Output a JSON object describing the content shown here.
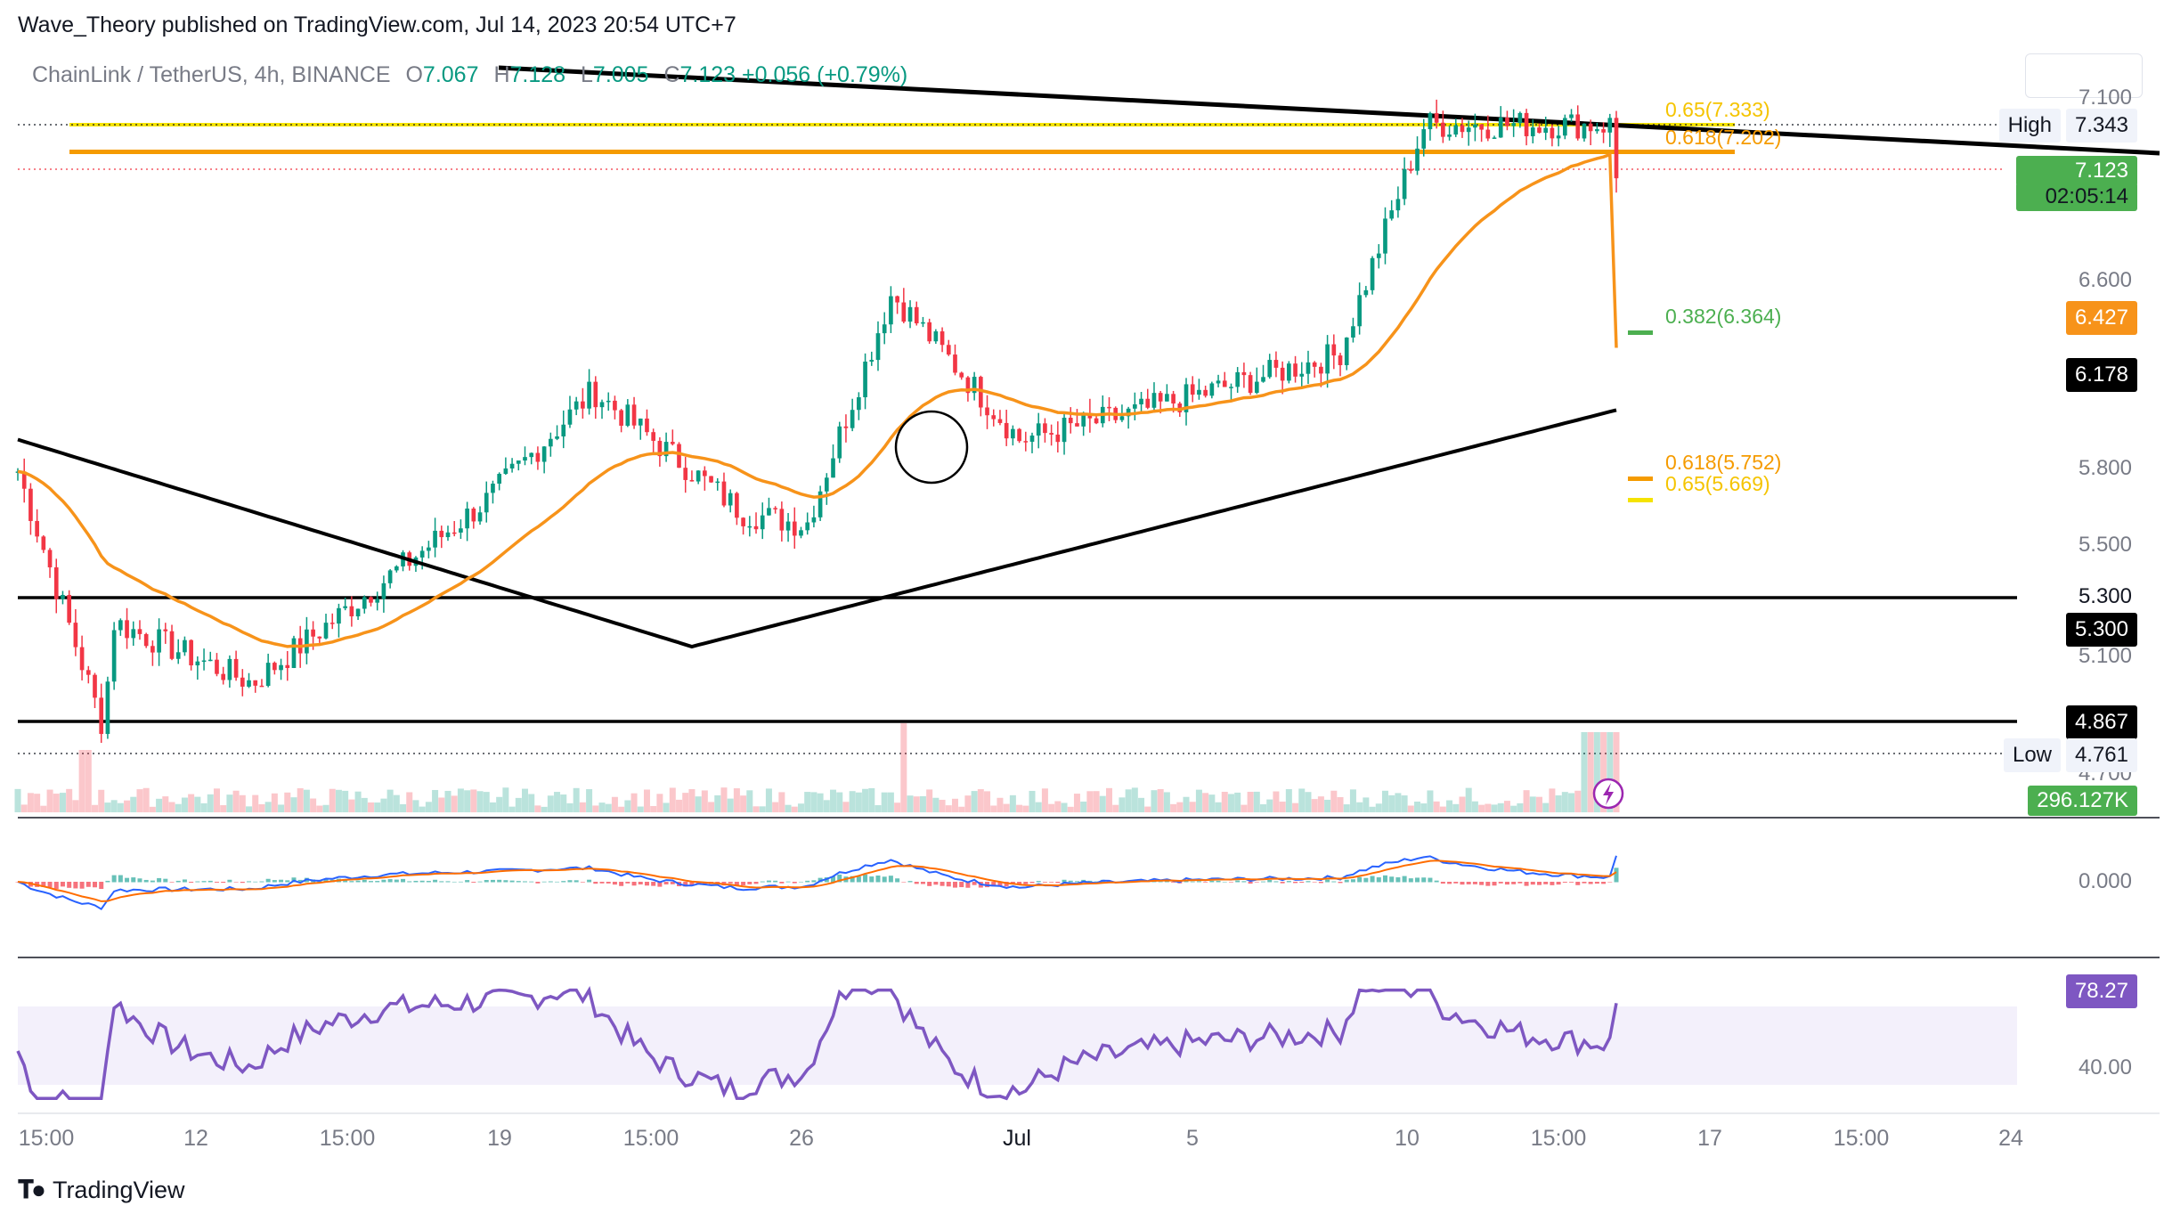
{
  "header": {
    "publisher_text": "Wave_Theory published on TradingView.com, Jul 14, 2023 20:54 UTC+7"
  },
  "symbol": {
    "name": "ChainLink / TetherUS, 4h, BINANCE",
    "o_label": "O",
    "o_value": "7.067",
    "h_label": "H",
    "h_value": "7.128",
    "l_label": "L",
    "l_value": "7.005",
    "c_label": "C",
    "c_value": "7.123",
    "change": "+0.056 (+0.79%)"
  },
  "price_axis": {
    "ticks": [
      "7.100",
      "6.600",
      "5.800",
      "5.500",
      "5.100",
      "4.700"
    ],
    "high_label": "High",
    "high_value": "7.343",
    "low_label": "Low",
    "low_value": "4.761",
    "last_price": "7.123",
    "countdown": "02:05:14",
    "ema_value": "6.427",
    "ma200_value": "6.178",
    "support1_top": "5.300",
    "support1_tag": "5.300",
    "support2_tag": "4.867",
    "volume_tag": "296.127K"
  },
  "macd_axis": {
    "tick": "0.000"
  },
  "rsi_axis": {
    "value": "78.27",
    "tick": "40.00"
  },
  "fib_labels": {
    "fib_065_top": "0.65(7.333)",
    "fib_0618_top": "0.618(7.202)",
    "fib_0382": "0.382(6.364)",
    "fib_0618_low": "0.618(5.752)",
    "fib_065_low": "0.65(5.669)"
  },
  "time_axis": [
    "15:00",
    "12",
    "15:00",
    "19",
    "15:00",
    "26",
    "Jul",
    "5",
    "10",
    "15:00",
    "17",
    "15:00",
    "24"
  ],
  "footer": {
    "brand": "TradingView"
  },
  "colors": {
    "up": "#089981",
    "down": "#f23645",
    "ema": "#f7931a",
    "ma200": "#000000",
    "fib_gold": "#f5d300",
    "fib_orange": "#f59b00",
    "fib_green": "#4caf50",
    "macd": "#2962ff",
    "signal": "#ff6d00",
    "rsi": "#7e57c2",
    "last_price_bg": "#4caf50"
  },
  "chart_data": {
    "type": "candlestick",
    "title": "ChainLink / TetherUS, 4h, BINANCE",
    "x_range": [
      "Jun 9 2023",
      "Jul 24 2023"
    ],
    "y_range": [
      4.6,
      7.5
    ],
    "key_points": [
      {
        "date": "Jun 9",
        "price": 5.92
      },
      {
        "date": "Jun 10",
        "price": 4.87
      },
      {
        "date": "Jun 10",
        "price": 4.761,
        "label": "Low"
      },
      {
        "date": "Jun 14",
        "price": 5.3
      },
      {
        "date": "Jun 19",
        "price": 5.05
      },
      {
        "date": "Jun 21",
        "price": 5.8
      },
      {
        "date": "Jun 25",
        "price": 6.25
      },
      {
        "date": "Jun 29",
        "price": 5.75
      },
      {
        "date": "Jun 30",
        "price": 5.7
      },
      {
        "date": "Jul 4",
        "price": 6.65
      },
      {
        "date": "Jul 7",
        "price": 6.05
      },
      {
        "date": "Jul 12",
        "price": 6.15
      },
      {
        "date": "Jul 13",
        "price": 6.4
      },
      {
        "date": "Jul 14",
        "price": 7.343,
        "label": "High"
      },
      {
        "date": "Jul 14",
        "price": 7.123,
        "label": "Last"
      }
    ],
    "horizontal_levels": [
      5.3,
      4.867
    ],
    "fib_levels": [
      7.333,
      7.202,
      6.364,
      5.752,
      5.669
    ],
    "ema_last": 6.427,
    "ma200_last": 6.178,
    "volume_last": "296.127K",
    "rsi_last": 78.27
  }
}
